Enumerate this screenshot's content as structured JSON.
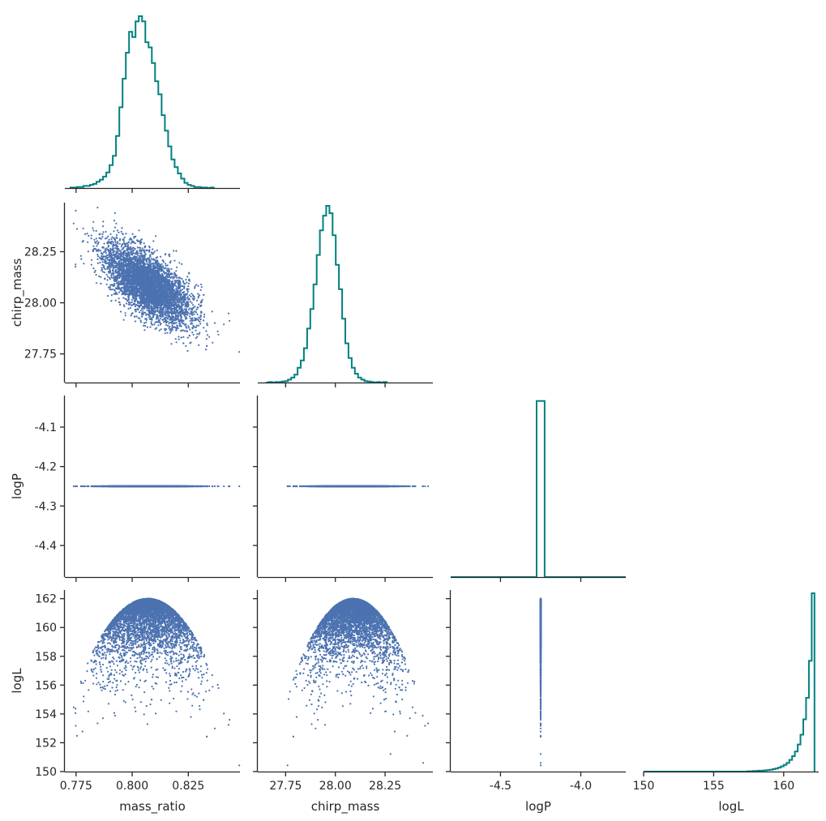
{
  "chart_data": {
    "type": "corner",
    "parameters": [
      "mass_ratio",
      "chirp_mass",
      "logP",
      "logL"
    ],
    "colors": {
      "histogram": "#008080",
      "scatter": "#4c72b0",
      "axis": "#262626"
    },
    "grid": false,
    "axes": {
      "mass_ratio": {
        "range": [
          0.77,
          0.848
        ],
        "ticks": [
          "0.775",
          "0.800",
          "0.825"
        ]
      },
      "chirp_mass": {
        "range": [
          27.61,
          28.49
        ],
        "ticks": [
          "27.75",
          "28.00",
          "28.25"
        ]
      },
      "logP_x": {
        "range": [
          -4.81,
          -3.72
        ],
        "ticks": [
          "-4.5",
          "-4.0"
        ]
      },
      "logP_y": {
        "range": [
          -4.48,
          -4.02
        ],
        "ticks": [
          "-4.1",
          "-4.2",
          "-4.3",
          "-4.4"
        ]
      },
      "logL_x": {
        "range": [
          150,
          162.5
        ],
        "ticks": [
          "150",
          "155",
          "160"
        ]
      },
      "logL_y": {
        "range": [
          150,
          162.6
        ],
        "ticks": [
          "162",
          "160",
          "158",
          "156",
          "154",
          "152",
          "150"
        ]
      }
    },
    "axis_labels": {
      "x": [
        "mass_ratio",
        "chirp_mass",
        "logP",
        "logL"
      ],
      "y": [
        "chirp_mass",
        "logP",
        "logL"
      ]
    },
    "samples": {
      "n": 5000,
      "mass_ratio": {
        "mean": 0.807,
        "std": 0.0095
      },
      "chirp_mass": {
        "mean": 28.09,
        "std": 0.095
      },
      "correlation_mass_ratio_chirp_mass": -0.65,
      "logP": -4.25,
      "logL_max": 162.0
    },
    "histograms": {
      "mass_ratio": {
        "bin_edges_start": 0.7725,
        "bin_width": 0.00145,
        "counts": [
          1,
          1,
          2,
          2,
          4,
          4,
          6,
          8,
          12,
          16,
          22,
          30,
          44,
          62,
          100,
          155,
          210,
          260,
          300,
          290,
          320,
          330,
          320,
          280,
          270,
          240,
          205,
          180,
          140,
          110,
          80,
          55,
          40,
          28,
          18,
          10,
          6,
          4,
          2,
          2,
          1,
          1,
          0,
          1
        ]
      },
      "chirp_mass": {
        "bin_edges_start": 27.65,
        "bin_width": 0.016,
        "counts": [
          0,
          1,
          0,
          1,
          1,
          2,
          3,
          6,
          10,
          16,
          30,
          45,
          70,
          110,
          150,
          200,
          260,
          310,
          340,
          360,
          345,
          300,
          240,
          190,
          130,
          80,
          50,
          30,
          18,
          10,
          6,
          3,
          2,
          1,
          0,
          1,
          0,
          1
        ]
      },
      "logP": {
        "bin_left": -4.275,
        "bin_right": -4.225,
        "height_fraction": 0.97
      },
      "logL": {
        "bin_edges_start": 150,
        "bin_width": 0.2,
        "counts": [
          0,
          0,
          0,
          0,
          0,
          0,
          0,
          0,
          0,
          0,
          0,
          0,
          0,
          0,
          0,
          0,
          0,
          0,
          0,
          0,
          0,
          0,
          0,
          0,
          0,
          0,
          0,
          0,
          0,
          0,
          0,
          0,
          0,
          0,
          0,
          0,
          0,
          1,
          1,
          2,
          2,
          3,
          3,
          4,
          5,
          6,
          8,
          10,
          13,
          17,
          22,
          28,
          38,
          50,
          65,
          88,
          120,
          170,
          240,
          360,
          580
        ]
      }
    }
  }
}
